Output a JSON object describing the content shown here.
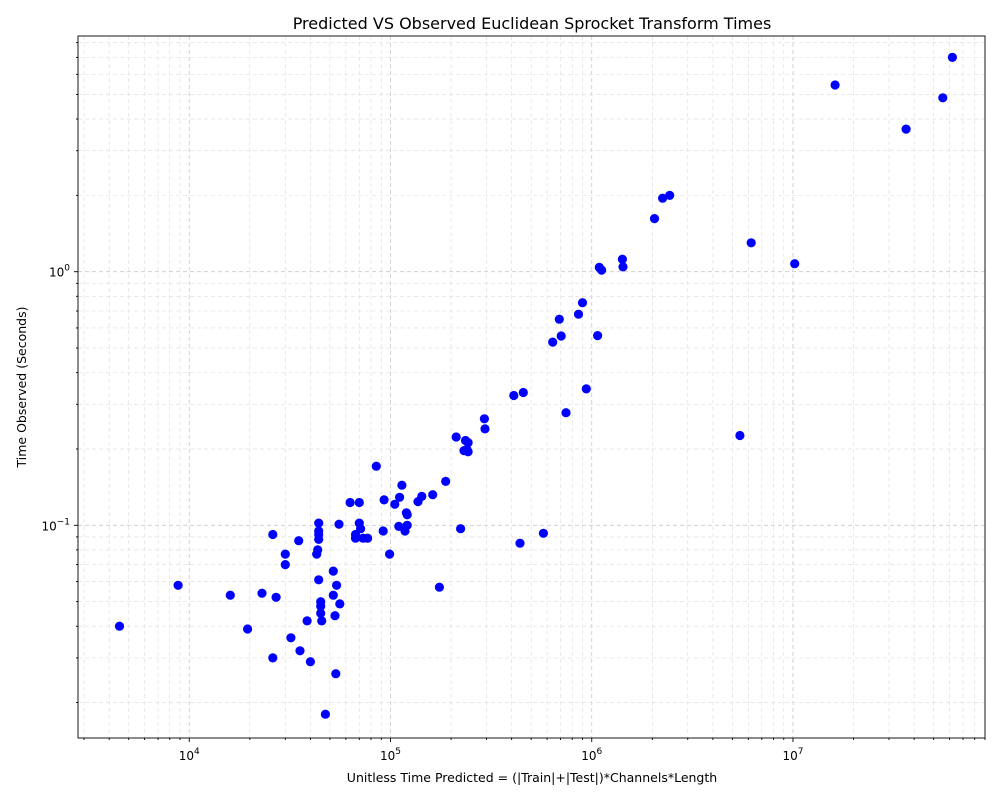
{
  "chart_data": {
    "type": "scatter",
    "title": "Predicted VS Observed Euclidean Sprocket Transform Times",
    "xlabel": "Unitless Time Predicted = (|Train|+|Test|)*Channels*Length",
    "ylabel": "Time Observed (Seconds)",
    "xscale": "log",
    "yscale": "log",
    "xlim": [
      2800,
      90000000
    ],
    "ylim": [
      0.0145,
      8.5
    ],
    "grid": true,
    "x_ticks": [
      {
        "value": 10000,
        "base": "10",
        "exp": "4"
      },
      {
        "value": 100000,
        "base": "10",
        "exp": "5"
      },
      {
        "value": 1000000,
        "base": "10",
        "exp": "6"
      },
      {
        "value": 10000000,
        "base": "10",
        "exp": "7"
      }
    ],
    "y_ticks": [
      {
        "value": 0.1,
        "base": "10",
        "exp": "−1"
      },
      {
        "value": 1,
        "base": "10",
        "exp": "0"
      }
    ],
    "marker_color": "#0000ff",
    "points": [
      [
        4500,
        0.04
      ],
      [
        8800,
        0.058
      ],
      [
        16000,
        0.053
      ],
      [
        19500,
        0.039
      ],
      [
        23000,
        0.054
      ],
      [
        26000,
        0.092
      ],
      [
        26000,
        0.03
      ],
      [
        27000,
        0.052
      ],
      [
        30000,
        0.077
      ],
      [
        30000,
        0.07
      ],
      [
        32000,
        0.036
      ],
      [
        35000,
        0.087
      ],
      [
        35500,
        0.032
      ],
      [
        38500,
        0.042
      ],
      [
        40000,
        0.029
      ],
      [
        43000,
        0.077
      ],
      [
        43500,
        0.08
      ],
      [
        44000,
        0.102
      ],
      [
        44000,
        0.095
      ],
      [
        44000,
        0.092
      ],
      [
        44000,
        0.088
      ],
      [
        44000,
        0.061
      ],
      [
        45000,
        0.05
      ],
      [
        45000,
        0.048
      ],
      [
        45000,
        0.045
      ],
      [
        45500,
        0.042
      ],
      [
        47500,
        0.018
      ],
      [
        52000,
        0.066
      ],
      [
        52000,
        0.053
      ],
      [
        53000,
        0.044
      ],
      [
        53500,
        0.026
      ],
      [
        54000,
        0.058
      ],
      [
        55500,
        0.101
      ],
      [
        56000,
        0.049
      ],
      [
        63000,
        0.123
      ],
      [
        67000,
        0.092
      ],
      [
        67000,
        0.089
      ],
      [
        70000,
        0.123
      ],
      [
        70000,
        0.102
      ],
      [
        71000,
        0.097
      ],
      [
        73000,
        0.089
      ],
      [
        77000,
        0.089
      ],
      [
        85000,
        0.171
      ],
      [
        92000,
        0.095
      ],
      [
        93000,
        0.126
      ],
      [
        99000,
        0.077
      ],
      [
        105000,
        0.121
      ],
      [
        110000,
        0.099
      ],
      [
        111000,
        0.129
      ],
      [
        114000,
        0.144
      ],
      [
        118000,
        0.095
      ],
      [
        120000,
        0.112
      ],
      [
        121000,
        0.11
      ],
      [
        121000,
        0.1
      ],
      [
        137000,
        0.124
      ],
      [
        143000,
        0.13
      ],
      [
        162000,
        0.132
      ],
      [
        175000,
        0.057
      ],
      [
        188000,
        0.149
      ],
      [
        212000,
        0.223
      ],
      [
        223000,
        0.097
      ],
      [
        232000,
        0.197
      ],
      [
        236000,
        0.216
      ],
      [
        240000,
        0.199
      ],
      [
        243000,
        0.212
      ],
      [
        243000,
        0.195
      ],
      [
        293000,
        0.263
      ],
      [
        295000,
        0.24
      ],
      [
        410000,
        0.325
      ],
      [
        440000,
        0.085
      ],
      [
        457000,
        0.334
      ],
      [
        575000,
        0.093
      ],
      [
        640000,
        0.528
      ],
      [
        690000,
        0.65
      ],
      [
        705000,
        0.558
      ],
      [
        745000,
        0.278
      ],
      [
        860000,
        0.68
      ],
      [
        900000,
        0.755
      ],
      [
        940000,
        0.345
      ],
      [
        1070000,
        0.56
      ],
      [
        1090000,
        1.04
      ],
      [
        1120000,
        1.015
      ],
      [
        1420000,
        1.12
      ],
      [
        1430000,
        1.045
      ],
      [
        2050000,
        1.62
      ],
      [
        2250000,
        1.95
      ],
      [
        2440000,
        2.0
      ],
      [
        5450000,
        0.226
      ],
      [
        6200000,
        1.3
      ],
      [
        10200000,
        1.075
      ],
      [
        16200000,
        5.45
      ],
      [
        36500000,
        3.65
      ],
      [
        55500000,
        4.85
      ],
      [
        62000000,
        7.0
      ]
    ]
  }
}
